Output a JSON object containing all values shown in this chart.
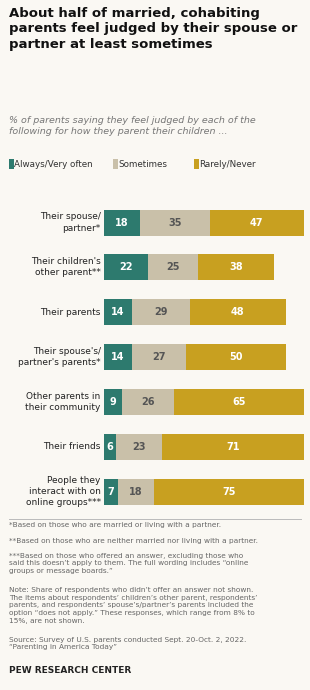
{
  "title": "About half of married, cohabiting\nparents feel judged by their spouse or\npartner at least sometimes",
  "subtitle": "% of parents saying they feel judged by each of the\nfollowing for how they parent their children ...",
  "categories": [
    "Their spouse/\npartner*",
    "Their children's\nother parent**",
    "Their parents",
    "Their spouse's/\npartner's parents*",
    "Other parents in\ntheir community",
    "Their friends",
    "People they\ninteract with on\nonline groups***"
  ],
  "always": [
    18,
    22,
    14,
    14,
    9,
    6,
    7
  ],
  "sometimes": [
    35,
    25,
    29,
    27,
    26,
    23,
    18
  ],
  "rarely": [
    47,
    38,
    48,
    50,
    65,
    71,
    75
  ],
  "color_always": "#2d7a6e",
  "color_sometimes": "#c9c0a9",
  "color_rarely": "#c8a020",
  "legend_labels": [
    "Always/Very often",
    "Sometimes",
    "Rarely/Never"
  ],
  "footnote1": "*Based on those who are married or living with a partner.",
  "footnote2": "**Based on those who are neither married nor living with a partner.",
  "footnote3": "***Based on those who offered an answer, excluding those who\nsaid this doesn’t apply to them. The full wording includes “online\ngroups or message boards.”",
  "footnote4": "Note: Share of respondents who didn’t offer an answer not shown.\nThe items about respondents’ children’s other parent, respondents’\nparents, and respondents’ spouse’s/partner’s parents included the\noption “does not apply.” These responses, which range from 8% to\n15%, are not shown.",
  "footnote5": "Source: Survey of U.S. parents conducted Sept. 20-Oct. 2, 2022.\n“Parenting in America Today”",
  "source_label": "PEW RESEARCH CENTER",
  "bg_color": "#faf8f3"
}
